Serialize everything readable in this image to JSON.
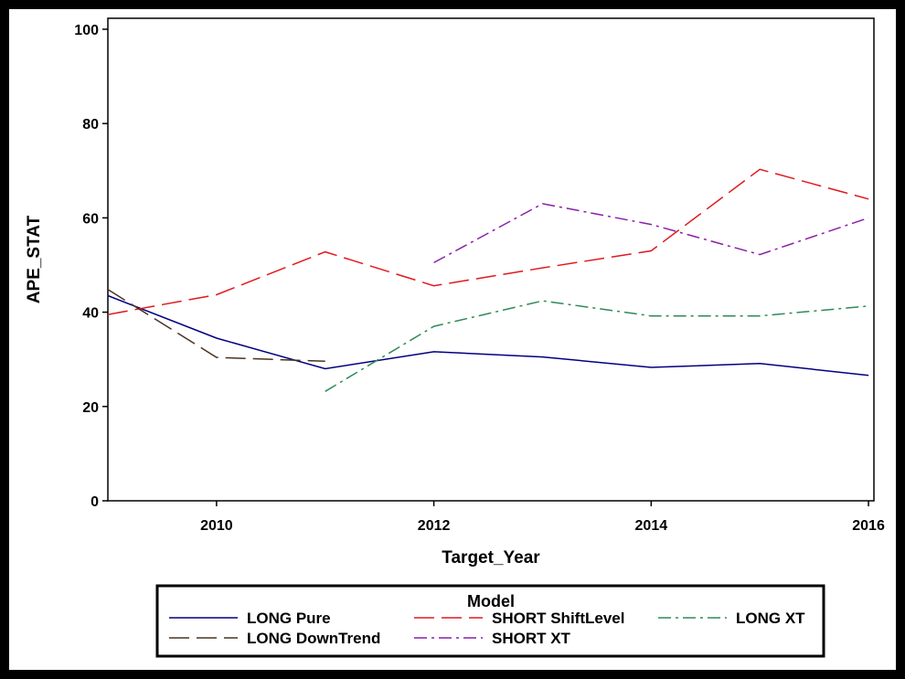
{
  "chart_data": {
    "type": "line",
    "title": "",
    "xlabel": "Target_Year",
    "ylabel": "APE_STAT",
    "xlim": [
      2009,
      2016.05
    ],
    "ylim": [
      0,
      100
    ],
    "xticks": [
      2010,
      2012,
      2014,
      2016
    ],
    "yticks": [
      0,
      20,
      40,
      60,
      80,
      100
    ],
    "grid": false,
    "legend": {
      "title": "Model",
      "placement": "bottom"
    },
    "series": [
      {
        "name": "LONG Pure",
        "color": "#000080",
        "dash": "solid",
        "x": [
          2009,
          2010,
          2011,
          2012,
          2013,
          2014,
          2015,
          2016
        ],
        "y": [
          43.5,
          34.5,
          28.0,
          31.6,
          30.5,
          28.3,
          29.1,
          26.6
        ]
      },
      {
        "name": "SHORT ShiftLevel",
        "color": "#e0191e",
        "dash": "long-dash",
        "x": [
          2009,
          2010,
          2011,
          2012,
          2013,
          2014,
          2015,
          2016
        ],
        "y": [
          39.5,
          43.7,
          52.8,
          45.6,
          49.4,
          53.0,
          70.3,
          64.0
        ]
      },
      {
        "name": "LONG XT",
        "color": "#2e8b57",
        "dash": "dash-dot",
        "x": [
          2011,
          2012,
          2013,
          2014,
          2015,
          2016
        ],
        "y": [
          23.2,
          37.0,
          42.4,
          39.2,
          39.2,
          41.3
        ]
      },
      {
        "name": "LONG DownTrend",
        "color": "#4a3320",
        "dash": "long-dash",
        "x": [
          2009,
          2010,
          2011
        ],
        "y": [
          44.8,
          30.4,
          29.6
        ]
      },
      {
        "name": "SHORT XT",
        "color": "#8b1fa8",
        "dash": "dash-dot",
        "x": [
          2012,
          2013,
          2014,
          2015,
          2016
        ],
        "y": [
          50.5,
          63.0,
          58.6,
          52.2,
          60.0
        ]
      }
    ]
  }
}
